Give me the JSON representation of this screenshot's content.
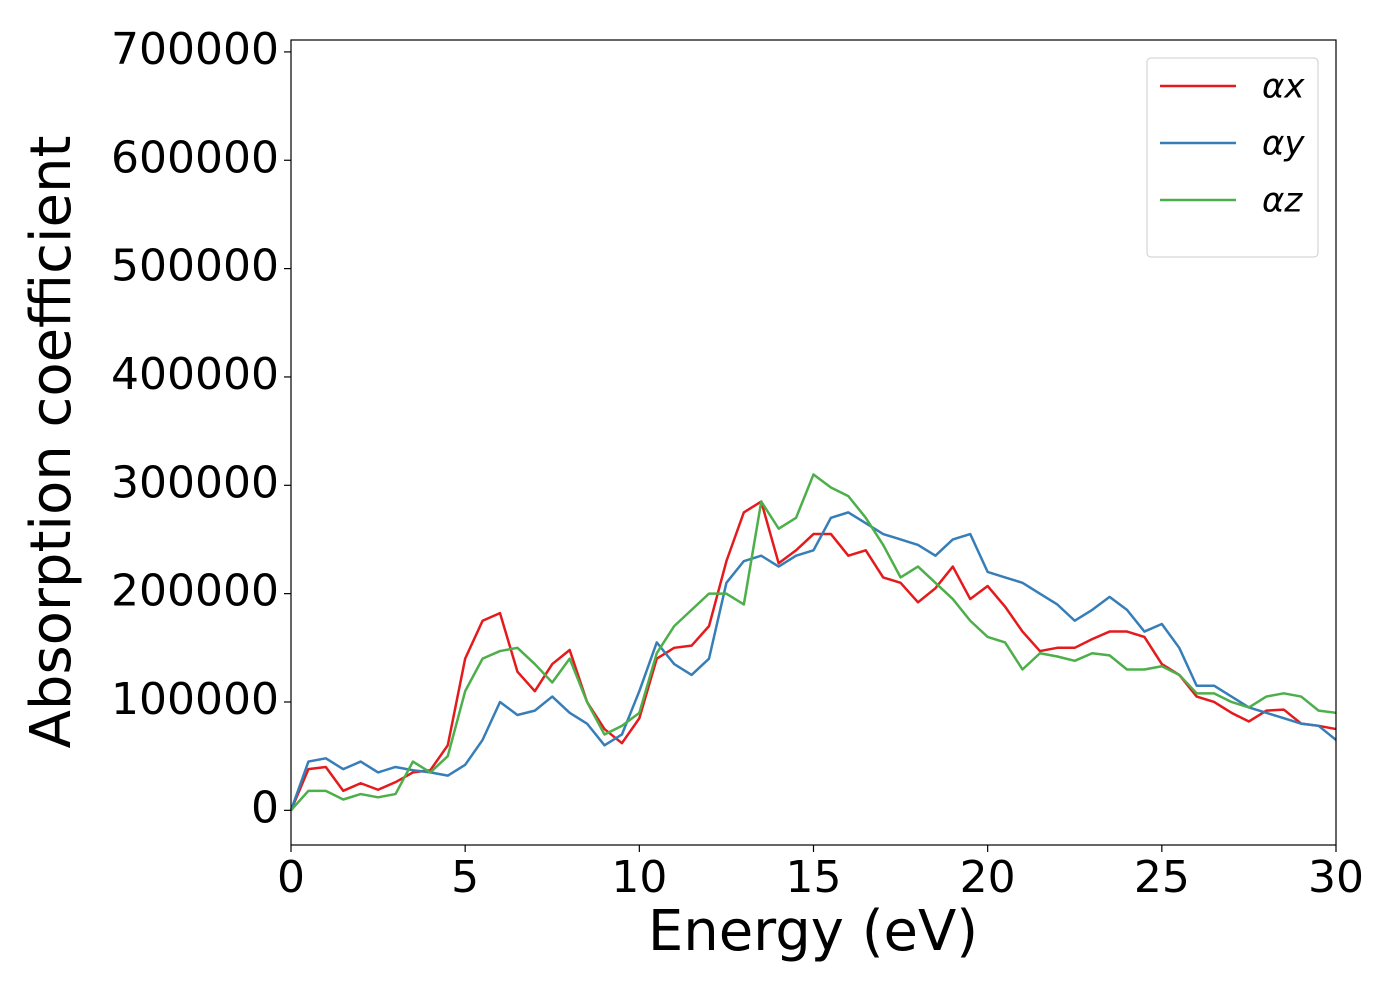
{
  "chart_data": {
    "type": "line",
    "xlabel": "Energy (eV)",
    "ylabel": "Absorption coefficient",
    "x": [
      0,
      0.5,
      1,
      1.5,
      2,
      2.5,
      3,
      3.5,
      4,
      4.5,
      5,
      5.5,
      6,
      6.5,
      7,
      7.5,
      8,
      8.5,
      9,
      9.5,
      10,
      10.5,
      11,
      11.5,
      12,
      12.5,
      13,
      13.5,
      14,
      14.5,
      15,
      15.5,
      16,
      16.5,
      17,
      17.5,
      18,
      18.5,
      19,
      19.5,
      20,
      20.5,
      21,
      21.5,
      22,
      22.5,
      23,
      23.5,
      24,
      24.5,
      25,
      25.5,
      26,
      26.5,
      27,
      27.5,
      28,
      28.5,
      29,
      29.5,
      30
    ],
    "series": [
      {
        "name": "αx",
        "color": "#e41a1c",
        "values": [
          0,
          38000,
          40000,
          18000,
          25000,
          19000,
          26000,
          35000,
          37000,
          60000,
          140000,
          175000,
          182000,
          128000,
          110000,
          135000,
          148000,
          100000,
          75000,
          62000,
          85000,
          140000,
          150000,
          152000,
          170000,
          230000,
          275000,
          285000,
          228000,
          240000,
          255000,
          255000,
          235000,
          240000,
          215000,
          210000,
          192000,
          205000,
          225000,
          195000,
          207000,
          188000,
          165000,
          147000,
          150000,
          150000,
          158000,
          165000,
          165000,
          160000,
          135000,
          125000,
          105000,
          100000,
          90000,
          82000,
          92000,
          93000,
          80000,
          78000,
          75000
        ]
      },
      {
        "name": "αy",
        "color": "#377eb8",
        "values": [
          0,
          45000,
          48000,
          38000,
          45000,
          35000,
          40000,
          37000,
          35000,
          32000,
          42000,
          65000,
          100000,
          88000,
          92000,
          105000,
          90000,
          80000,
          60000,
          70000,
          110000,
          155000,
          135000,
          125000,
          140000,
          210000,
          230000,
          235000,
          225000,
          235000,
          240000,
          270000,
          275000,
          265000,
          255000,
          250000,
          245000,
          235000,
          250000,
          255000,
          220000,
          215000,
          210000,
          200000,
          190000,
          175000,
          185000,
          197000,
          185000,
          165000,
          172000,
          150000,
          115000,
          115000,
          105000,
          95000,
          90000,
          85000,
          80000,
          78000,
          65000
        ]
      },
      {
        "name": "αz",
        "color": "#4daf4a",
        "values": [
          0,
          18000,
          18000,
          10000,
          15000,
          12000,
          15000,
          45000,
          35000,
          50000,
          110000,
          140000,
          147000,
          150000,
          135000,
          118000,
          140000,
          100000,
          70000,
          78000,
          90000,
          145000,
          170000,
          185000,
          200000,
          200000,
          190000,
          285000,
          260000,
          270000,
          310000,
          298000,
          290000,
          270000,
          245000,
          215000,
          225000,
          210000,
          195000,
          175000,
          160000,
          155000,
          130000,
          145000,
          142000,
          138000,
          145000,
          143000,
          130000,
          130000,
          133000,
          125000,
          108000,
          108000,
          100000,
          95000,
          105000,
          108000,
          105000,
          92000,
          90000
        ]
      }
    ],
    "xlim": [
      0,
      30
    ],
    "xticks": [
      0,
      5,
      10,
      15,
      20,
      25,
      30
    ],
    "ylim": [
      -32000,
      711000
    ],
    "yticks": [
      0,
      100000,
      200000,
      300000,
      400000,
      500000,
      600000,
      700000
    ],
    "legend": "upper right",
    "grid": false
  }
}
